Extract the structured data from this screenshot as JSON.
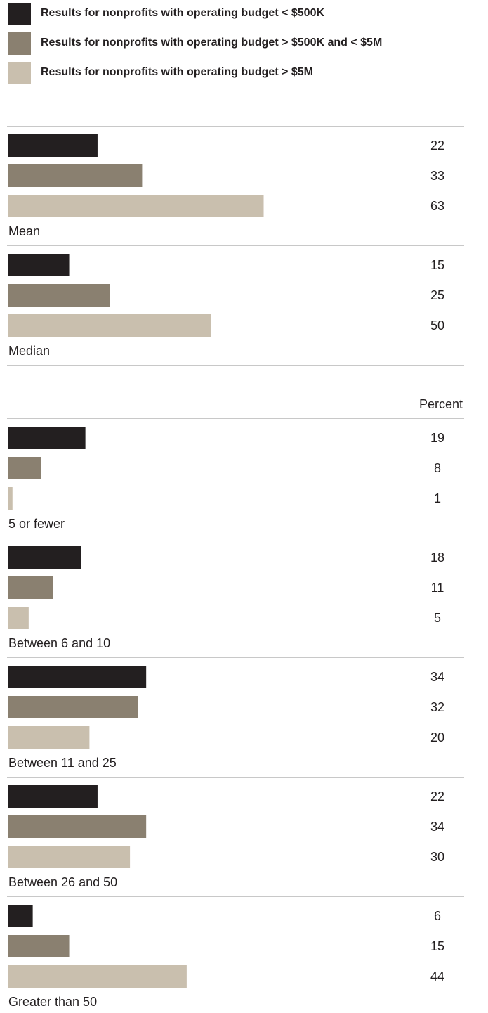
{
  "legend": [
    {
      "label": "Results for nonprofits with operating budget < $500K",
      "color": "#231f20"
    },
    {
      "label": "Results for nonprofits with operating budget > $500K and < $5M",
      "color": "#8a8070"
    },
    {
      "label": "Results for nonprofits with operating budget > $5M",
      "color": "#c9bfae"
    }
  ],
  "chart_data": [
    {
      "type": "bar",
      "orientation": "horizontal",
      "categories": [
        "Mean",
        "Median"
      ],
      "series": [
        {
          "name": "Results for nonprofits with operating budget < $500K",
          "color": "#231f20",
          "values": [
            22,
            15
          ]
        },
        {
          "name": "Results for nonprofits with operating budget > $500K and < $5M",
          "color": "#8a8070",
          "values": [
            33,
            25
          ]
        },
        {
          "name": "Results for nonprofits with operating budget > $5M",
          "color": "#c9bfae",
          "values": [
            63,
            50
          ]
        }
      ],
      "data_labels": true,
      "grid": false
    },
    {
      "type": "bar",
      "orientation": "horizontal",
      "unit_label": "Percent",
      "categories": [
        "5 or fewer",
        "Between 6 and 10",
        "Between 11 and 25",
        "Between 26 and 50",
        "Greater than 50"
      ],
      "series": [
        {
          "name": "Results for nonprofits with operating budget < $500K",
          "color": "#231f20",
          "values": [
            19,
            18,
            34,
            22,
            6
          ]
        },
        {
          "name": "Results for nonprofits with operating budget > $500K and < $5M",
          "color": "#8a8070",
          "values": [
            8,
            11,
            32,
            34,
            15
          ]
        },
        {
          "name": "Results for nonprofits with operating budget > $5M",
          "color": "#c9bfae",
          "values": [
            1,
            5,
            20,
            30,
            44
          ]
        }
      ],
      "data_labels": true,
      "grid": false
    }
  ]
}
